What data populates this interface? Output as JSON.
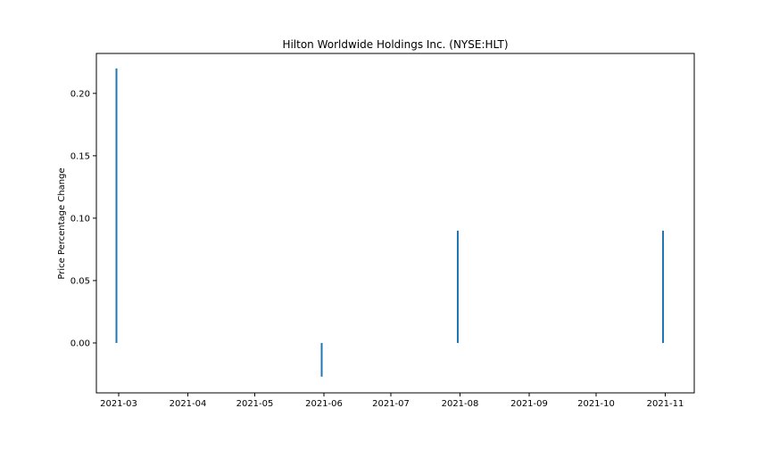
{
  "chart_data": {
    "type": "bar",
    "title": "Hilton Worldwide Holdings Inc. (NYSE:HLT)",
    "xlabel": "",
    "ylabel": "Price Percentage Change",
    "series_color": "#1f77b4",
    "x": [
      "2021-02-28",
      "2021-05-31",
      "2021-07-31",
      "2021-10-31"
    ],
    "values": [
      0.22,
      -0.027,
      0.09,
      0.09
    ],
    "xlim": [
      "2021-02-19",
      "2021-11-14"
    ],
    "ylim": [
      -0.04,
      0.232
    ],
    "xticks": [
      "2021-03-01",
      "2021-04-01",
      "2021-05-01",
      "2021-06-01",
      "2021-07-01",
      "2021-08-01",
      "2021-09-01",
      "2021-10-01",
      "2021-11-01"
    ],
    "xtick_labels": [
      "2021-03",
      "2021-04",
      "2021-05",
      "2021-06",
      "2021-07",
      "2021-08",
      "2021-09",
      "2021-10",
      "2021-11"
    ],
    "yticks": [
      0.0,
      0.05,
      0.1,
      0.15,
      0.2
    ],
    "ytick_labels": [
      "0.00",
      "0.05",
      "0.10",
      "0.15",
      "0.20"
    ],
    "grid": false,
    "legend": false
  }
}
